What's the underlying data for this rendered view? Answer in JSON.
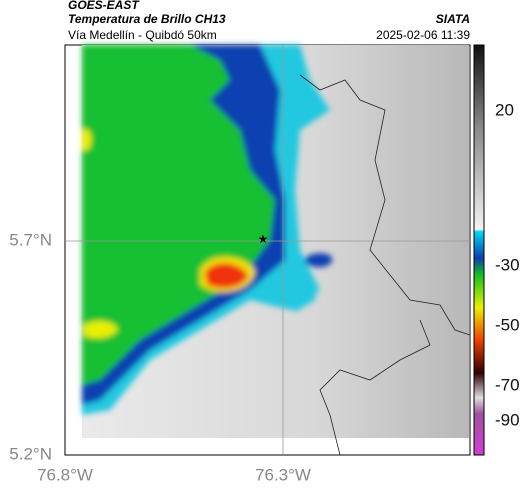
{
  "header": {
    "product": "GOES-EAST",
    "subtitle": "Temperatura de Brillo CH13",
    "location": "Vía Medellín - Quibdó 50km",
    "agency": "SIATA",
    "datetime": "2025-02-06 11:39"
  },
  "map": {
    "lat_labels": [
      "5.7°N",
      "5.2°N"
    ],
    "lon_labels": [
      "76.8°W",
      "76.3°W"
    ]
  },
  "colorbar": {
    "ticks": [
      20,
      -30,
      -50,
      -70,
      -90
    ]
  }
}
